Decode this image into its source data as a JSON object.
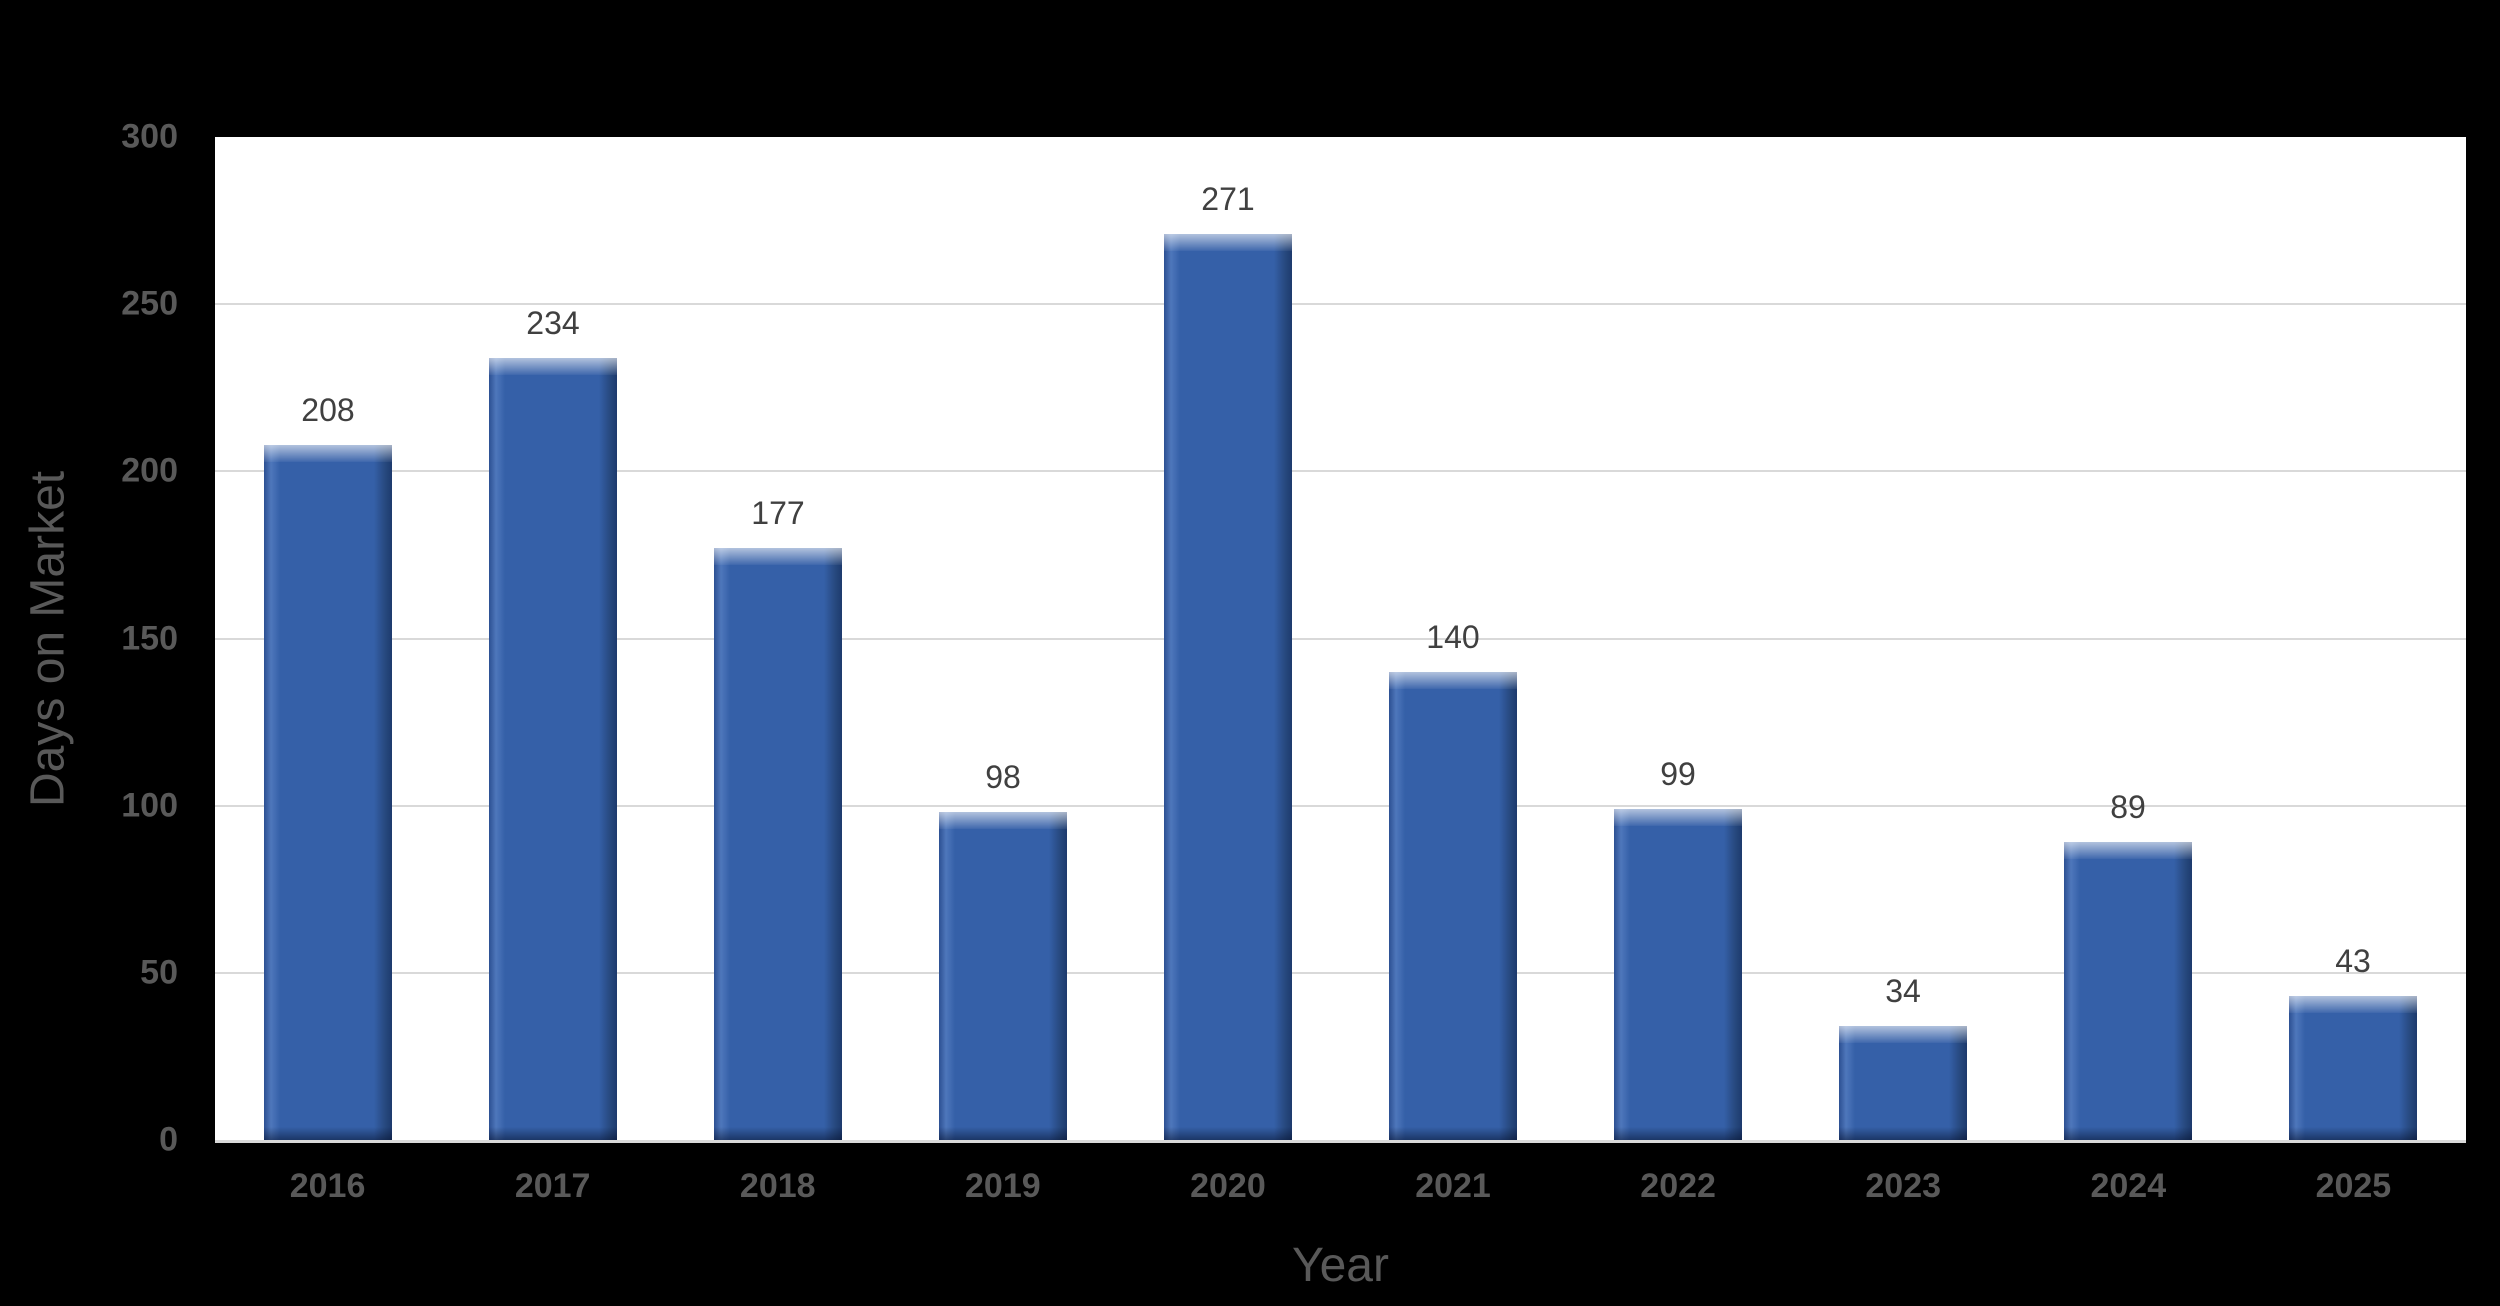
{
  "chart_data": {
    "type": "bar",
    "title": "",
    "categories": [
      "2016",
      "2017",
      "2018",
      "2019",
      "2020",
      "2021",
      "2022",
      "2023",
      "2024",
      "2025"
    ],
    "values": [
      208,
      234,
      177,
      98,
      271,
      140,
      99,
      34,
      89,
      43
    ],
    "xlabel": "Year",
    "ylabel": "Days on Market",
    "ylim": [
      0,
      300
    ],
    "yticks": [
      0,
      50,
      100,
      150,
      200,
      250,
      300
    ],
    "grid": true,
    "legend": false,
    "value_labels_shown": true,
    "colors": {
      "bar_fill": "#3560A8",
      "bar_bevel_light": "#7EA3DE",
      "bar_bevel_dark": "#1F3864",
      "plot_background": "#FFFFFF",
      "page_background": "#000000",
      "gridline": "#D9D9D9",
      "axis_line": "#D9D9D9",
      "tick_label": "#595959",
      "value_label": "#404040",
      "axis_title": "#595959"
    }
  }
}
